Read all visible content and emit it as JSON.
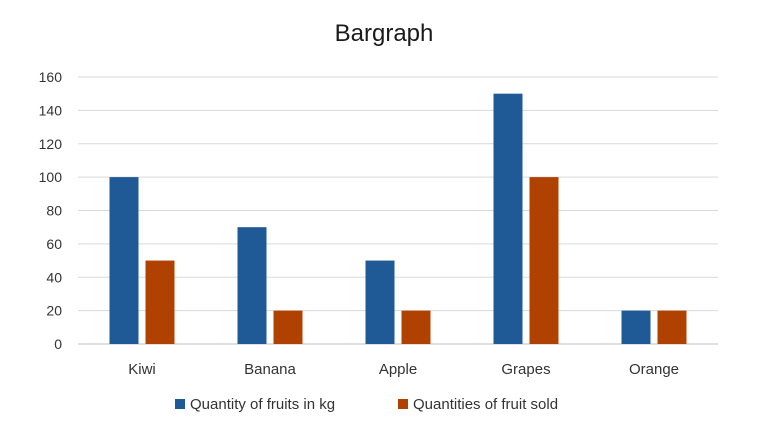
{
  "chart_data": {
    "type": "bar",
    "title": "Bargraph",
    "xlabel": "",
    "ylabel": "",
    "ylim": [
      0,
      160
    ],
    "yticks": [
      0,
      20,
      40,
      60,
      80,
      100,
      120,
      140,
      160
    ],
    "grid": true,
    "legend_position": "bottom",
    "categories": [
      "Kiwi",
      "Banana",
      "Apple",
      "Grapes",
      "Orange"
    ],
    "series": [
      {
        "name": "Quantity of fruits in kg",
        "color": "#1f5a96",
        "values": [
          100,
          70,
          50,
          150,
          20
        ]
      },
      {
        "name": "Quantities of fruit sold",
        "color": "#b04100",
        "values": [
          50,
          20,
          20,
          100,
          20
        ]
      }
    ]
  }
}
